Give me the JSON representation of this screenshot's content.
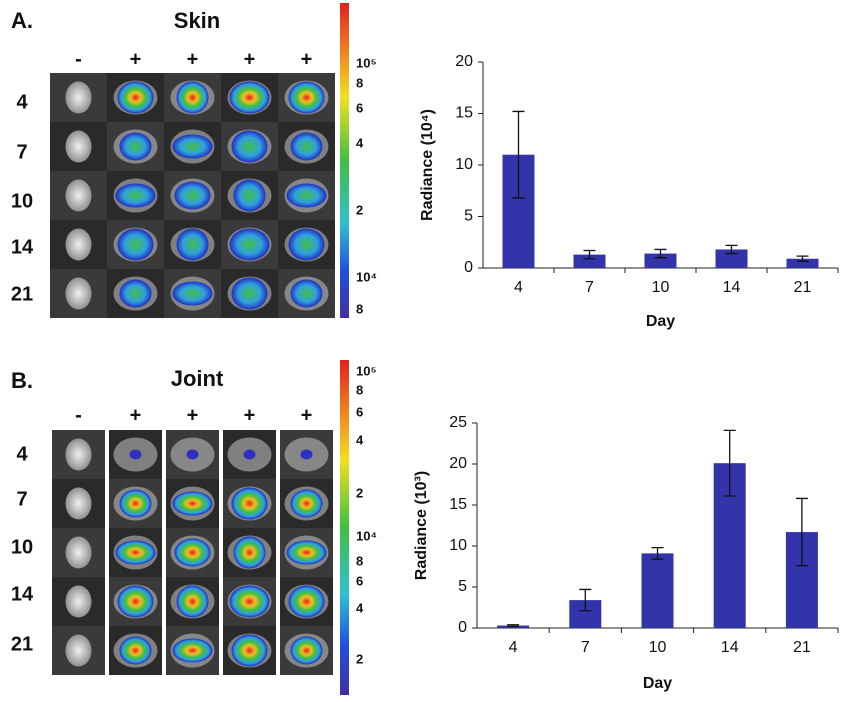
{
  "panels": [
    {
      "label": "A.",
      "title": "Skin",
      "columns": [
        "-",
        "+",
        "+",
        "+",
        "+"
      ],
      "rows": [
        "4",
        "7",
        "10",
        "14",
        "21"
      ],
      "colorbar_ticks": [
        "10⁵",
        "8",
        "6",
        "4",
        "2",
        "10⁴",
        "8"
      ]
    },
    {
      "label": "B.",
      "title": "Joint",
      "columns": [
        "-",
        "+",
        "+",
        "+",
        "+"
      ],
      "rows": [
        "4",
        "7",
        "10",
        "14",
        "21"
      ],
      "colorbar_ticks": [
        "10⁵",
        "8",
        "6",
        "4",
        "2",
        "10⁴",
        "8",
        "6",
        "4",
        "2"
      ]
    }
  ],
  "chart_data": [
    {
      "type": "bar",
      "categories": [
        "4",
        "7",
        "10",
        "14",
        "21"
      ],
      "values": [
        11,
        1.3,
        1.4,
        1.8,
        0.9
      ],
      "errors": [
        4.2,
        0.4,
        0.4,
        0.4,
        0.25
      ],
      "color": "#3333aa",
      "ylabel": "Radiance (10⁴)",
      "xlabel": "Day",
      "ylim": [
        0,
        20
      ],
      "yticks": [
        0,
        5,
        10,
        15,
        20
      ]
    },
    {
      "type": "bar",
      "categories": [
        "4",
        "7",
        "10",
        "14",
        "21"
      ],
      "values": [
        0.3,
        3.4,
        9.1,
        20.1,
        11.7
      ],
      "errors": [
        0.1,
        1.3,
        0.7,
        4,
        4.1
      ],
      "color": "#3333aa",
      "ylabel": "Radiance (10³)",
      "xlabel": "Day",
      "ylim": [
        0,
        25
      ],
      "yticks": [
        0,
        5,
        10,
        15,
        20,
        25
      ]
    }
  ]
}
